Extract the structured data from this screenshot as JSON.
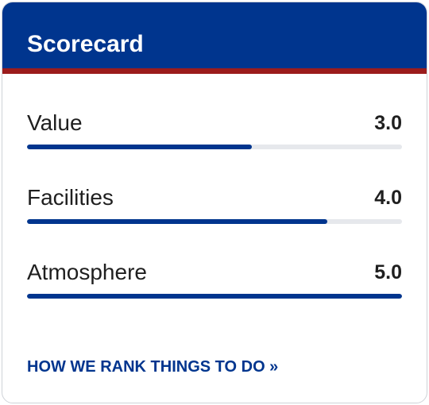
{
  "card": {
    "title": "Scorecard",
    "colors": {
      "header": "#00358e",
      "accent_stripe": "#9b1c1c",
      "bar_fill": "#00358e",
      "bar_track": "#e6e8ec"
    }
  },
  "scores": [
    {
      "label": "Value",
      "score": "3.0",
      "fill_fraction": 0.6
    },
    {
      "label": "Facilities",
      "score": "4.0",
      "fill_fraction": 0.8
    },
    {
      "label": "Atmosphere",
      "score": "5.0",
      "fill_fraction": 1.0
    }
  ],
  "footer": {
    "link_label": "HOW WE RANK THINGS TO DO »"
  }
}
